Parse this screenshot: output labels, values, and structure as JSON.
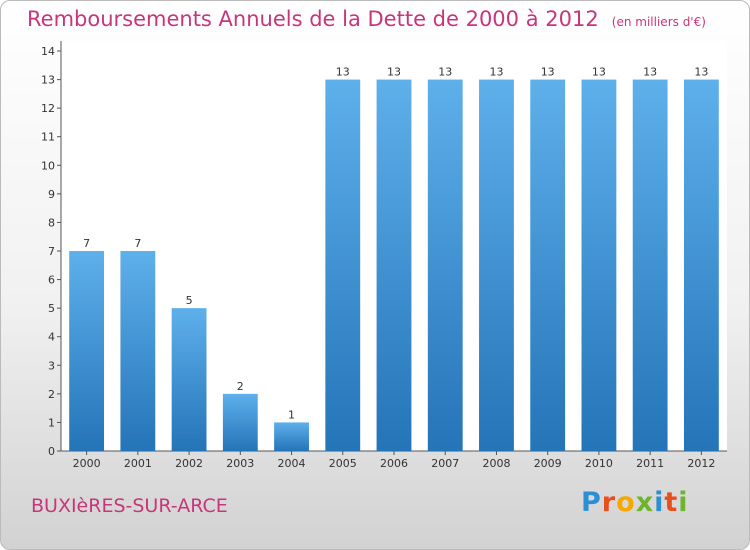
{
  "header": {
    "title": "Remboursements Annuels de la Dette de 2000 à 2012",
    "unit": "(en milliers d'€)"
  },
  "footer": {
    "location": "BUXIèRES-SUR-ARCE",
    "logo_letters": [
      "P",
      "r",
      "o",
      "x",
      "i",
      "t",
      "i"
    ],
    "logo_colors": [
      "#2b8fd6",
      "#e94e1b",
      "#f6a800",
      "#6cb52d",
      "#2b8fd6",
      "#e94e1b",
      "#6cb52d"
    ]
  },
  "chart_data": {
    "type": "bar",
    "title": "Remboursements Annuels de la Dette de 2000 à 2012",
    "categories": [
      "2000",
      "2001",
      "2002",
      "2003",
      "2004",
      "2005",
      "2006",
      "2007",
      "2008",
      "2009",
      "2010",
      "2011",
      "2012"
    ],
    "values": [
      7,
      7,
      5,
      2,
      1,
      13,
      13,
      13,
      13,
      13,
      13,
      13,
      13
    ],
    "value_labels": [
      "7",
      "7",
      "5",
      "2",
      "1",
      "13",
      "13",
      "13",
      "13",
      "13",
      "13",
      "13",
      "13"
    ],
    "yticks": [
      0,
      1,
      2,
      3,
      4,
      5,
      6,
      7,
      8,
      9,
      10,
      11,
      12,
      13,
      14
    ],
    "ylim": [
      0,
      14
    ],
    "grid": false,
    "legend": "none",
    "bar_color_top": "#5eb0eb",
    "bar_color_bottom": "#2474b8"
  }
}
